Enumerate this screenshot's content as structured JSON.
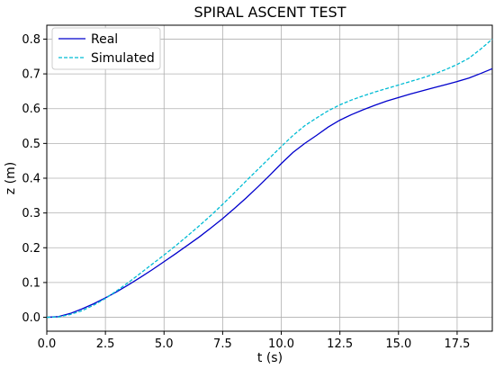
{
  "chart_data": {
    "type": "line",
    "title": "SPIRAL ASCENT TEST",
    "xlabel": "t (s)",
    "ylabel": "z (m)",
    "xlim": [
      0,
      19.0
    ],
    "ylim": [
      -0.04,
      0.84
    ],
    "xticks": [
      "0.0",
      "2.5",
      "5.0",
      "7.5",
      "10.0",
      "12.5",
      "15.0",
      "17.5"
    ],
    "yticks": [
      "0.0",
      "0.1",
      "0.2",
      "0.3",
      "0.4",
      "0.5",
      "0.6",
      "0.7",
      "0.8"
    ],
    "grid": true,
    "legend_position": "top-left",
    "series": [
      {
        "name": "Real",
        "color": "#0000cc",
        "style": "solid",
        "x": [
          0,
          0.5,
          1.0,
          1.5,
          2.0,
          2.5,
          3.0,
          3.5,
          4.0,
          4.5,
          5.0,
          5.5,
          6.0,
          6.5,
          7.0,
          7.5,
          8.0,
          8.5,
          9.0,
          9.5,
          10.0,
          10.5,
          11.0,
          11.5,
          12.0,
          12.5,
          13.0,
          13.5,
          14.0,
          14.5,
          15.0,
          15.5,
          16.0,
          16.5,
          17.0,
          17.5,
          18.0,
          18.5,
          19.0
        ],
        "y": [
          0.0,
          0.002,
          0.011,
          0.024,
          0.039,
          0.056,
          0.074,
          0.094,
          0.115,
          0.137,
          0.16,
          0.183,
          0.207,
          0.231,
          0.257,
          0.284,
          0.313,
          0.343,
          0.375,
          0.408,
          0.442,
          0.474,
          0.5,
          0.523,
          0.547,
          0.567,
          0.583,
          0.597,
          0.61,
          0.622,
          0.632,
          0.642,
          0.651,
          0.66,
          0.669,
          0.678,
          0.688,
          0.701,
          0.715
        ]
      },
      {
        "name": "Simulated",
        "color": "#00bcd4",
        "style": "dashed",
        "x": [
          0,
          0.5,
          1.0,
          1.5,
          2.0,
          2.5,
          3.0,
          3.5,
          4.0,
          4.5,
          5.0,
          5.5,
          6.0,
          6.5,
          7.0,
          7.5,
          8.0,
          8.5,
          9.0,
          9.5,
          10.0,
          10.5,
          11.0,
          11.5,
          12.0,
          12.5,
          13.0,
          13.5,
          14.0,
          14.5,
          15.0,
          15.5,
          16.0,
          16.5,
          17.0,
          17.5,
          18.0,
          18.5,
          19.0
        ],
        "y": [
          0.0,
          0.001,
          0.008,
          0.019,
          0.035,
          0.054,
          0.077,
          0.101,
          0.127,
          0.153,
          0.179,
          0.206,
          0.234,
          0.263,
          0.293,
          0.325,
          0.358,
          0.392,
          0.425,
          0.458,
          0.491,
          0.523,
          0.551,
          0.573,
          0.594,
          0.611,
          0.625,
          0.637,
          0.648,
          0.658,
          0.668,
          0.678,
          0.688,
          0.699,
          0.712,
          0.727,
          0.745,
          0.771,
          0.8
        ]
      }
    ]
  }
}
